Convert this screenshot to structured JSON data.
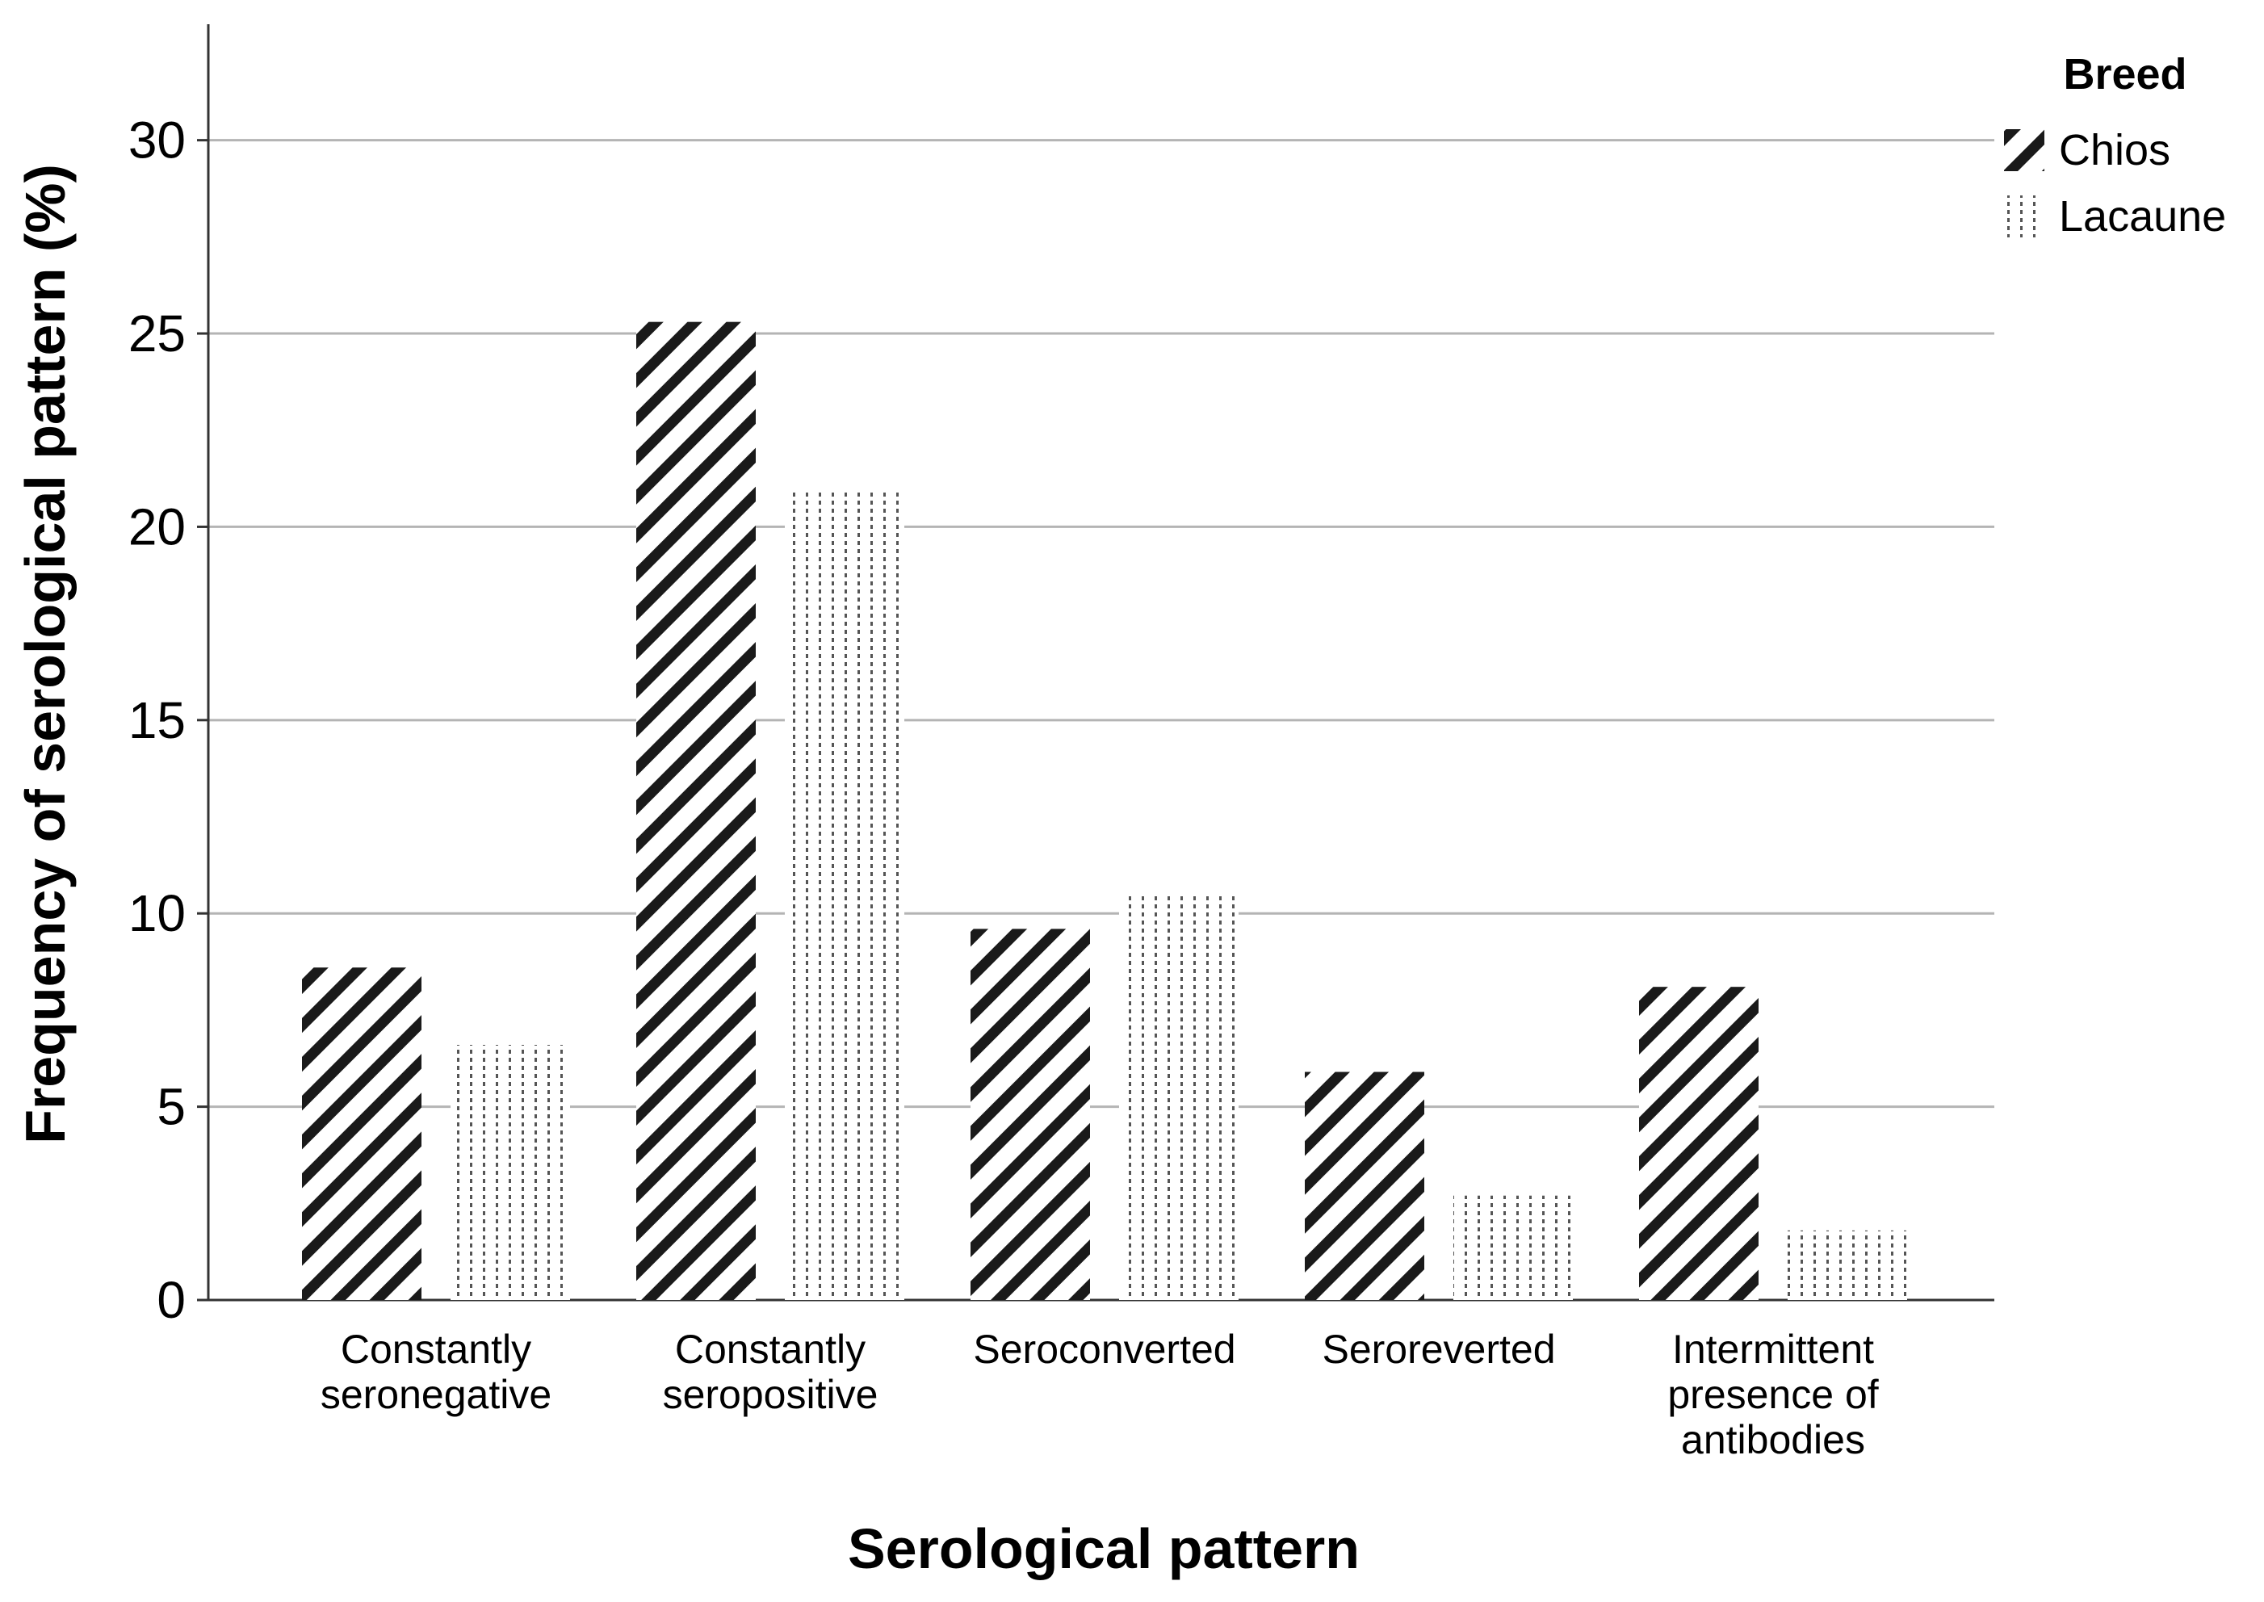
{
  "chart_data": {
    "type": "bar",
    "xlabel": "Serological pattern",
    "ylabel": "Frequency of serological pattern (%)",
    "ylim": [
      0,
      33
    ],
    "yticks": [
      0,
      5,
      10,
      15,
      20,
      25,
      30
    ],
    "grid": true,
    "legend": {
      "title": "Breed",
      "placement": "top-right"
    },
    "categories": [
      [
        "Constantly",
        "seronegative"
      ],
      [
        "Constantly",
        "seropositive"
      ],
      [
        "Seroconverted"
      ],
      [
        "Seroreverted"
      ],
      [
        "Intermittent",
        "presence of",
        "antibodies"
      ]
    ],
    "series": [
      {
        "name": "Chios",
        "pattern": "diagonal-hatch",
        "values": [
          8.6,
          25.3,
          9.6,
          5.9,
          8.1
        ]
      },
      {
        "name": "Lacaune",
        "pattern": "vertical-dotted",
        "values": [
          6.6,
          20.9,
          10.5,
          2.7,
          1.8
        ]
      }
    ]
  }
}
